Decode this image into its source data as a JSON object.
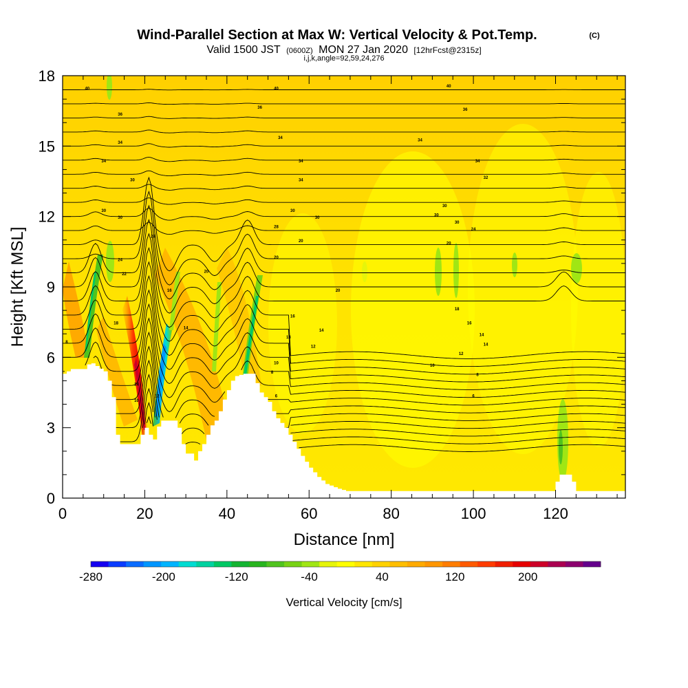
{
  "chart_data": {
    "type": "heatmap",
    "title": "Wind-Parallel Section at Max W: Vertical Velocity & Pot.Temp.",
    "title_mark": "(C)",
    "subtitle": {
      "part1": "Valid 1500 JST",
      "part2": "(0600Z)",
      "part3": "MON 27 Jan 2020",
      "part4": "[12hrFcst@2315z]"
    },
    "indices_line": "i,j,k,angle=92,59,24,276",
    "xlabel": "Distance [nm]",
    "ylabel": "Height [Kft MSL]",
    "xlim": [
      0,
      137
    ],
    "ylim": [
      0,
      18
    ],
    "x_ticks": [
      "0",
      "20",
      "40",
      "60",
      "80",
      "100",
      "120"
    ],
    "y_ticks": [
      "0",
      "3",
      "6",
      "9",
      "12",
      "15",
      "18"
    ],
    "colorbar": {
      "label": "Vertical Velocity [cm/s]",
      "range": [
        -280,
        280
      ],
      "tick_labels": [
        "-280",
        "-200",
        "-120",
        "-40",
        "40",
        "120",
        "200"
      ],
      "colors": [
        "#1400f0",
        "#0a3cff",
        "#0a6cff",
        "#0096ff",
        "#00b4ff",
        "#00dcd2",
        "#00d2a0",
        "#00c864",
        "#14b432",
        "#28b41e",
        "#50c31e",
        "#78d214",
        "#a0e614",
        "#e6f50a",
        "#ffff00",
        "#ffe600",
        "#ffd200",
        "#ffbe00",
        "#ffaa00",
        "#ff9600",
        "#ff7d00",
        "#ff5a00",
        "#ff3c00",
        "#f01e00",
        "#e60000",
        "#cd0028",
        "#aa0050",
        "#8c006e",
        "#64008c"
      ]
    },
    "terrain_kft": [
      [
        0,
        5.3
      ],
      [
        2,
        5.5
      ],
      [
        5,
        5.5
      ],
      [
        6.5,
        5.8
      ],
      [
        10,
        5.4
      ],
      [
        11,
        5.0
      ],
      [
        12,
        4.3
      ],
      [
        12.5,
        3.5
      ],
      [
        13,
        2.7
      ],
      [
        14,
        2.3
      ],
      [
        18,
        2.3
      ],
      [
        19,
        2.7
      ],
      [
        20,
        3.0
      ],
      [
        21,
        2.7
      ],
      [
        21.5,
        2.3
      ],
      [
        22,
        2.5
      ],
      [
        22.5,
        3.0
      ],
      [
        23.5,
        3.1
      ],
      [
        24,
        3.3
      ],
      [
        27,
        3.3
      ],
      [
        28,
        3.0
      ],
      [
        29,
        2.3
      ],
      [
        30,
        1.9
      ],
      [
        31,
        1.9
      ],
      [
        32,
        1.6
      ],
      [
        33,
        2.0
      ],
      [
        34,
        2.3
      ],
      [
        35,
        2.7
      ],
      [
        36,
        3.1
      ],
      [
        37,
        3.3
      ],
      [
        38,
        3.7
      ],
      [
        39,
        4.2
      ],
      [
        40,
        4.6
      ],
      [
        41,
        5.0
      ],
      [
        42,
        5.2
      ],
      [
        44,
        5.3
      ],
      [
        46,
        5.3
      ],
      [
        47,
        4.9
      ],
      [
        48,
        4.5
      ],
      [
        50,
        4.1
      ],
      [
        51,
        3.7
      ],
      [
        52,
        3.4
      ],
      [
        54,
        3.0
      ],
      [
        56,
        2.4
      ],
      [
        58,
        1.8
      ],
      [
        60,
        1.3
      ],
      [
        62,
        0.9
      ],
      [
        64,
        0.6
      ],
      [
        67,
        0.4
      ],
      [
        69,
        0.3
      ],
      [
        80,
        0.3
      ],
      [
        100,
        0.3
      ],
      [
        119,
        0.3
      ],
      [
        120,
        0.7
      ],
      [
        121,
        1.0
      ],
      [
        123,
        1.0
      ],
      [
        124,
        0.7
      ],
      [
        125,
        0.3
      ],
      [
        137,
        0.3
      ]
    ],
    "contour_labels": [
      {
        "x": 6,
        "y": 17.4,
        "text": "40"
      },
      {
        "x": 52,
        "y": 17.4,
        "text": "40"
      },
      {
        "x": 94,
        "y": 17.5,
        "text": "40"
      },
      {
        "x": 14,
        "y": 16.3,
        "text": "36"
      },
      {
        "x": 48,
        "y": 16.6,
        "text": "36"
      },
      {
        "x": 98,
        "y": 16.5,
        "text": "36"
      },
      {
        "x": 14,
        "y": 15.1,
        "text": "34"
      },
      {
        "x": 53,
        "y": 15.3,
        "text": "34"
      },
      {
        "x": 87,
        "y": 15.2,
        "text": "34"
      },
      {
        "x": 10,
        "y": 14.3,
        "text": "34"
      },
      {
        "x": 58,
        "y": 14.3,
        "text": "34"
      },
      {
        "x": 101,
        "y": 14.3,
        "text": "34"
      },
      {
        "x": 17,
        "y": 13.5,
        "text": "30"
      },
      {
        "x": 58,
        "y": 13.5,
        "text": "34"
      },
      {
        "x": 103,
        "y": 13.6,
        "text": "32"
      },
      {
        "x": 10,
        "y": 12.2,
        "text": "30"
      },
      {
        "x": 56,
        "y": 12.2,
        "text": "30"
      },
      {
        "x": 93,
        "y": 12.4,
        "text": "30"
      },
      {
        "x": 14,
        "y": 11.9,
        "text": "30"
      },
      {
        "x": 62,
        "y": 11.9,
        "text": "30"
      },
      {
        "x": 91,
        "y": 12.0,
        "text": "30"
      },
      {
        "x": 96,
        "y": 11.7,
        "text": "30"
      },
      {
        "x": 52,
        "y": 11.5,
        "text": "28"
      },
      {
        "x": 100,
        "y": 11.4,
        "text": "24"
      },
      {
        "x": 22,
        "y": 11.1,
        "text": "28"
      },
      {
        "x": 58,
        "y": 10.9,
        "text": "20"
      },
      {
        "x": 94,
        "y": 10.8,
        "text": "20"
      },
      {
        "x": 14,
        "y": 10.1,
        "text": "24"
      },
      {
        "x": 52,
        "y": 10.2,
        "text": "20"
      },
      {
        "x": 15,
        "y": 9.5,
        "text": "22"
      },
      {
        "x": 35,
        "y": 9.6,
        "text": "20"
      },
      {
        "x": 67,
        "y": 8.8,
        "text": "20"
      },
      {
        "x": 96,
        "y": 8.0,
        "text": "18"
      },
      {
        "x": 13,
        "y": 7.4,
        "text": "18"
      },
      {
        "x": 56,
        "y": 7.7,
        "text": "16"
      },
      {
        "x": 99,
        "y": 7.4,
        "text": "16"
      },
      {
        "x": 30,
        "y": 7.2,
        "text": "14"
      },
      {
        "x": 63,
        "y": 7.1,
        "text": "14"
      },
      {
        "x": 102,
        "y": 6.9,
        "text": "14"
      },
      {
        "x": 55,
        "y": 6.8,
        "text": "13"
      },
      {
        "x": 103,
        "y": 6.5,
        "text": "14"
      },
      {
        "x": 61,
        "y": 6.4,
        "text": "12"
      },
      {
        "x": 97,
        "y": 6.1,
        "text": "12"
      },
      {
        "x": 1,
        "y": 6.6,
        "text": "8"
      },
      {
        "x": 52,
        "y": 5.7,
        "text": "10"
      },
      {
        "x": 90,
        "y": 5.6,
        "text": "10"
      },
      {
        "x": 51,
        "y": 5.3,
        "text": "8"
      },
      {
        "x": 101,
        "y": 5.2,
        "text": "8"
      },
      {
        "x": 52,
        "y": 4.3,
        "text": "6"
      },
      {
        "x": 100,
        "y": 4.3,
        "text": "6"
      },
      {
        "x": 18,
        "y": 4.1,
        "text": "10"
      },
      {
        "x": 23,
        "y": 4.3,
        "text": "12"
      },
      {
        "x": 26,
        "y": 8.8,
        "text": "16"
      },
      {
        "x": 18,
        "y": 4.8,
        "text": "14"
      }
    ]
  }
}
